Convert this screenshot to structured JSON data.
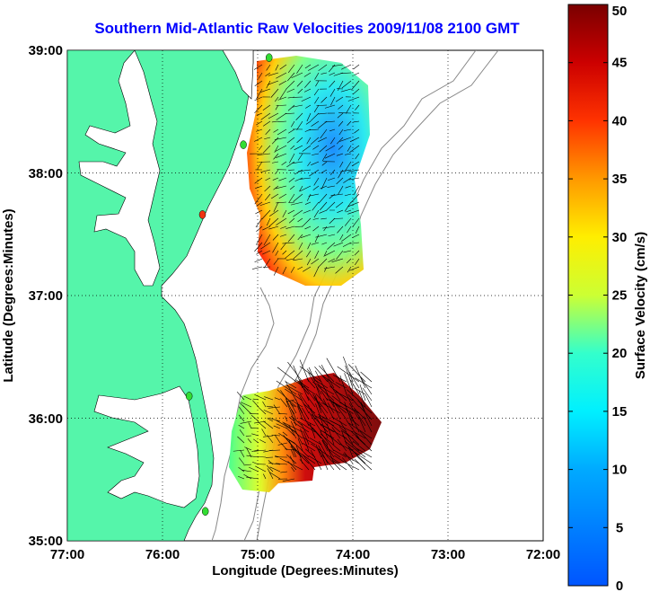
{
  "title": "Southern Mid-Atlantic Raw Velocities 2009/11/08 2100 GMT",
  "map": {
    "x_axis_label": "Longitude (Degrees:Minutes)",
    "y_axis_label": "Latitude (Degrees:Minutes)",
    "x_ticks": [
      "77:00",
      "76:00",
      "75:00",
      "74:00",
      "73:00",
      "72:00"
    ],
    "y_ticks": [
      "39:00",
      "38:00",
      "37:00",
      "36:00",
      "35:00"
    ],
    "lon_range": [
      -77,
      -72
    ],
    "lat_range": [
      35,
      39
    ],
    "land_color": "#55f5aa",
    "ocean_color": "#ffffff",
    "grid": "dotted"
  },
  "colorbar": {
    "label": "Surface Velocity (cm/s)",
    "ticks": [
      "0",
      "5",
      "10",
      "15",
      "20",
      "25",
      "30",
      "35",
      "40",
      "45",
      "50"
    ],
    "range": [
      0,
      50
    ],
    "colormap": "jet"
  },
  "stations": [
    {
      "lon": -74.88,
      "lat": 38.94,
      "color": "#33dd33"
    },
    {
      "lon": -75.15,
      "lat": 38.23,
      "color": "#33dd33"
    },
    {
      "lon": -75.58,
      "lat": 37.66,
      "color": "#ee3311"
    },
    {
      "lon": -75.72,
      "lat": 36.18,
      "color": "#33dd33"
    },
    {
      "lon": -75.55,
      "lat": 35.24,
      "color": "#33dd33"
    }
  ]
}
